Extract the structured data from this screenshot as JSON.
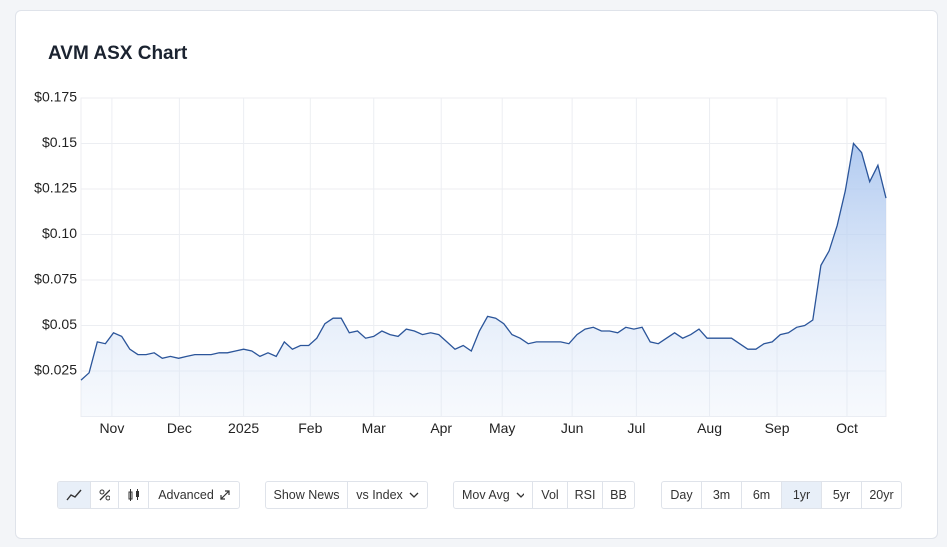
{
  "title": "AVM ASX Chart",
  "chart_data": {
    "type": "area",
    "color": "#2b559a",
    "values": [
      0.02,
      0.024,
      0.041,
      0.04,
      0.046,
      0.044,
      0.037,
      0.034,
      0.034,
      0.035,
      0.032,
      0.033,
      0.032,
      0.033,
      0.034,
      0.034,
      0.034,
      0.035,
      0.035,
      0.036,
      0.037,
      0.036,
      0.033,
      0.035,
      0.033,
      0.041,
      0.037,
      0.039,
      0.039,
      0.043,
      0.051,
      0.054,
      0.054,
      0.046,
      0.047,
      0.043,
      0.044,
      0.047,
      0.045,
      0.044,
      0.048,
      0.047,
      0.045,
      0.046,
      0.045,
      0.041,
      0.037,
      0.039,
      0.036,
      0.047,
      0.055,
      0.054,
      0.051,
      0.045,
      0.043,
      0.04,
      0.041,
      0.041,
      0.041,
      0.041,
      0.04,
      0.045,
      0.048,
      0.049,
      0.047,
      0.047,
      0.046,
      0.049,
      0.048,
      0.049,
      0.041,
      0.04,
      0.043,
      0.046,
      0.043,
      0.045,
      0.048,
      0.043,
      0.043,
      0.043,
      0.043,
      0.04,
      0.037,
      0.037,
      0.04,
      0.041,
      0.045,
      0.046,
      0.049,
      0.05,
      0.053,
      0.083,
      0.091,
      0.105,
      0.124,
      0.15,
      0.145,
      0.129,
      0.138,
      0.12
    ],
    "xlim": [
      0,
      99
    ],
    "xticks": [
      {
        "value": 3.8,
        "label": "Nov"
      },
      {
        "value": 12.1,
        "label": "Dec"
      },
      {
        "value": 20.0,
        "label": "2025"
      },
      {
        "value": 28.2,
        "label": "Feb"
      },
      {
        "value": 36.0,
        "label": "Mar"
      },
      {
        "value": 44.3,
        "label": "Apr"
      },
      {
        "value": 51.8,
        "label": "May"
      },
      {
        "value": 60.4,
        "label": "Jun"
      },
      {
        "value": 68.3,
        "label": "Jul"
      },
      {
        "value": 77.3,
        "label": "Aug"
      },
      {
        "value": 85.6,
        "label": "Sep"
      },
      {
        "value": 94.2,
        "label": "Oct"
      }
    ],
    "ylim": [
      0,
      0.175
    ],
    "yticks": [
      {
        "value": 0.025,
        "label": "$0.025"
      },
      {
        "value": 0.05,
        "label": "$0.05"
      },
      {
        "value": 0.075,
        "label": "$0.075"
      },
      {
        "value": 0.1,
        "label": "$0.10"
      },
      {
        "value": 0.125,
        "label": "$0.125"
      },
      {
        "value": 0.15,
        "label": "$0.15"
      },
      {
        "value": 0.175,
        "label": "$0.175"
      }
    ],
    "grid": true
  },
  "controls": {
    "advanced": "Advanced",
    "news": [
      "Show News",
      "vs Index"
    ],
    "indicators": [
      "Mov Avg",
      "Vol",
      "RSI",
      "BB"
    ],
    "ranges": [
      "Day",
      "3m",
      "6m",
      "1yr",
      "5yr",
      "20yr"
    ]
  }
}
